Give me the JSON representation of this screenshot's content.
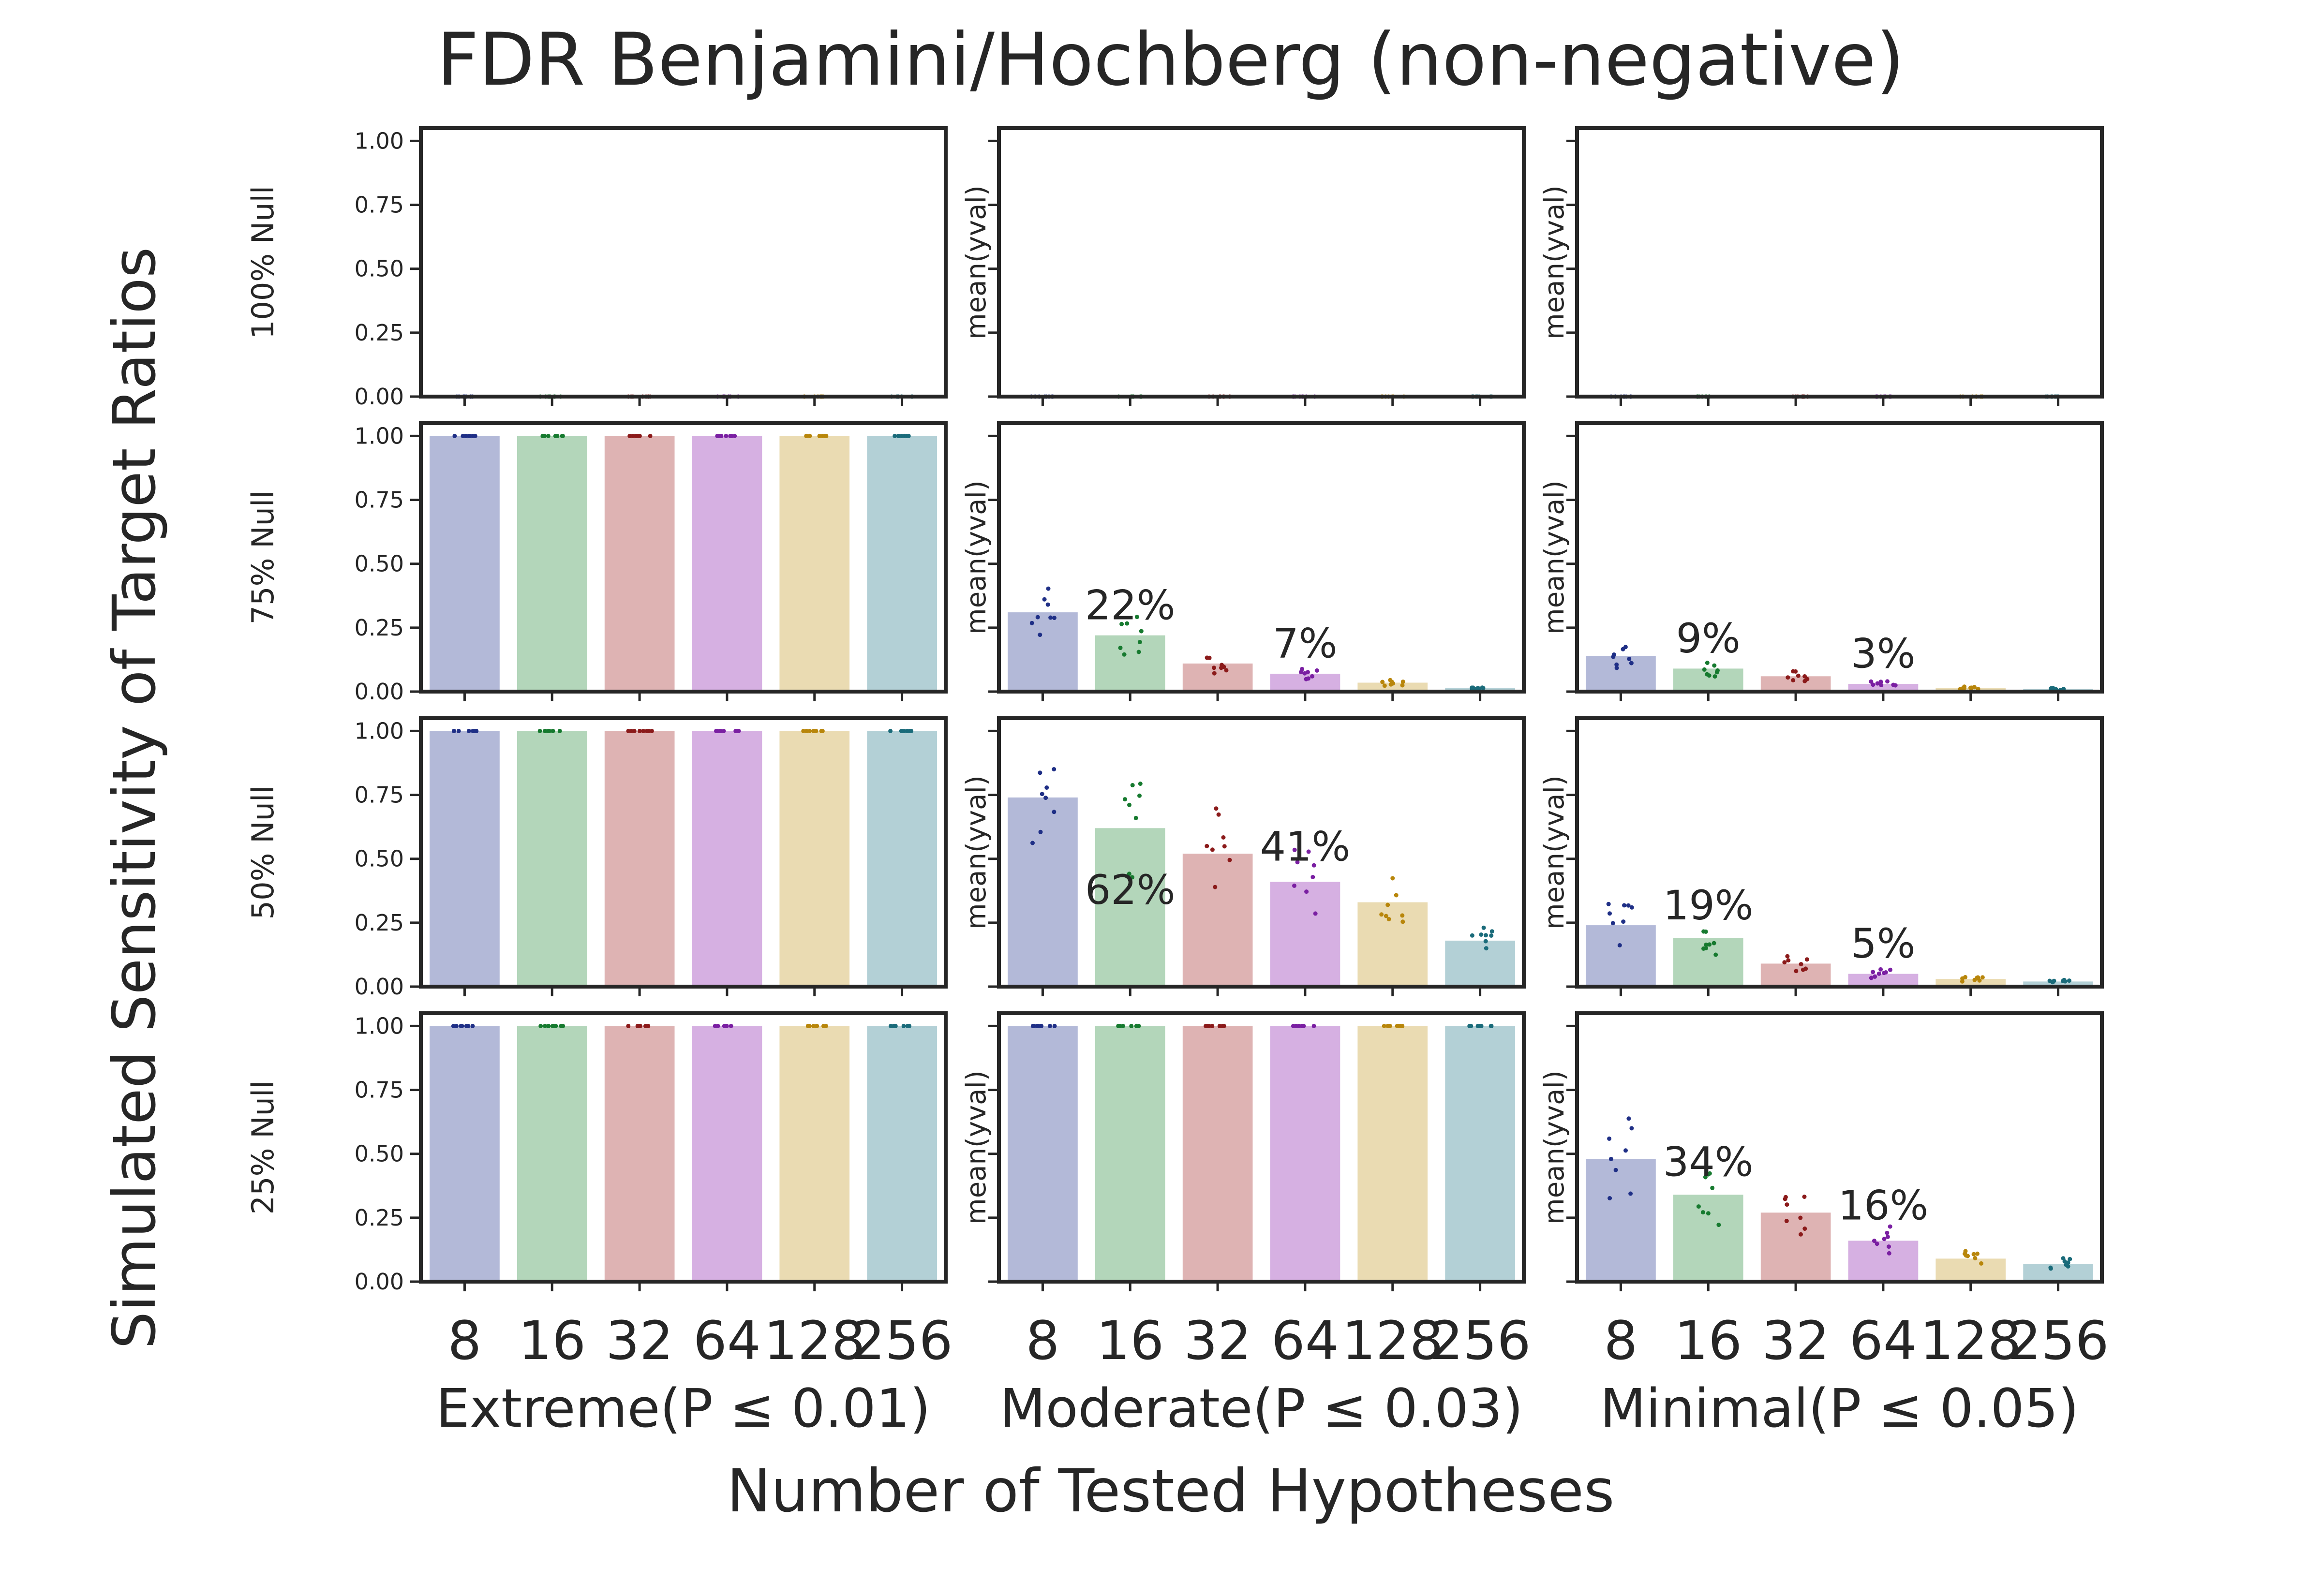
{
  "title": "FDR Benjamini/Hochberg (non-negative)",
  "xlabel": "Number of Tested Hypotheses",
  "ylabel": "Simulated Sensitivity of Target Ratios",
  "inner_ylabel": "mean(yval)",
  "columns": [
    "Extreme(P ≤ 0.01)",
    "Moderate(P ≤ 0.03)",
    "Minimal(P ≤ 0.05)"
  ],
  "rows": [
    "100% Null",
    "75% Null",
    "50% Null",
    "25% Null"
  ],
  "chart_data": {
    "type": "bar",
    "layout": "facet-grid 4 rows x 3 columns, bars with jittered strip points",
    "categories": [
      "8",
      "16",
      "32",
      "64",
      "128",
      "256"
    ],
    "ylim": [
      0,
      1.05
    ],
    "yticks": [
      "0.00",
      "0.25",
      "0.50",
      "0.75",
      "1.00"
    ],
    "bar_colors": [
      "#b3b9d8",
      "#b3d6ba",
      "#deb3b3",
      "#d6b0e2",
      "#eadbb2",
      "#b3d0d6"
    ],
    "point_colors": [
      "#1f2f86",
      "#167a2f",
      "#8b1a1a",
      "#7a1fa2",
      "#b8860b",
      "#1a6b7a"
    ],
    "panels": [
      {
        "row": "100% Null",
        "column": "Extreme(P ≤ 0.01)",
        "values": [
          0,
          0,
          0,
          0,
          0,
          0
        ],
        "annotations": []
      },
      {
        "row": "100% Null",
        "column": "Moderate(P ≤ 0.03)",
        "values": [
          0,
          0,
          0,
          0,
          0,
          0
        ],
        "annotations": []
      },
      {
        "row": "100% Null",
        "column": "Minimal(P ≤ 0.05)",
        "values": [
          0,
          0,
          0,
          0,
          0,
          0
        ],
        "annotations": []
      },
      {
        "row": "75% Null",
        "column": "Extreme(P ≤ 0.01)",
        "values": [
          1,
          1,
          1,
          1,
          1,
          1
        ],
        "annotations": []
      },
      {
        "row": "75% Null",
        "column": "Moderate(P ≤ 0.03)",
        "values": [
          0.31,
          0.22,
          0.11,
          0.07,
          0.035,
          0.015
        ],
        "annotations": [
          {
            "text": "22%",
            "x": "16",
            "y": 0.34
          },
          {
            "text": "7%",
            "x": "64",
            "y": 0.19
          }
        ]
      },
      {
        "row": "75% Null",
        "column": "Minimal(P ≤ 0.05)",
        "values": [
          0.14,
          0.09,
          0.06,
          0.03,
          0.015,
          0.01
        ],
        "annotations": [
          {
            "text": "9%",
            "x": "16",
            "y": 0.21
          },
          {
            "text": "3%",
            "x": "64",
            "y": 0.15
          }
        ]
      },
      {
        "row": "50% Null",
        "column": "Extreme(P ≤ 0.01)",
        "values": [
          1,
          1,
          1,
          1,
          1,
          1
        ],
        "annotations": []
      },
      {
        "row": "50% Null",
        "column": "Moderate(P ≤ 0.03)",
        "values": [
          0.74,
          0.62,
          0.52,
          0.41,
          0.33,
          0.18
        ],
        "annotations": [
          {
            "text": "62%",
            "x": "16",
            "y": 0.38
          },
          {
            "text": "41%",
            "x": "64",
            "y": 0.55
          }
        ]
      },
      {
        "row": "50% Null",
        "column": "Minimal(P ≤ 0.05)",
        "values": [
          0.24,
          0.19,
          0.09,
          0.05,
          0.03,
          0.02
        ],
        "annotations": [
          {
            "text": "19%",
            "x": "16",
            "y": 0.32
          },
          {
            "text": "5%",
            "x": "64",
            "y": 0.17
          }
        ]
      },
      {
        "row": "25% Null",
        "column": "Extreme(P ≤ 0.01)",
        "values": [
          1,
          1,
          1,
          1,
          1,
          1
        ],
        "annotations": []
      },
      {
        "row": "25% Null",
        "column": "Moderate(P ≤ 0.03)",
        "values": [
          1,
          1,
          1,
          1,
          1,
          1
        ],
        "annotations": []
      },
      {
        "row": "25% Null",
        "column": "Minimal(P ≤ 0.05)",
        "values": [
          0.48,
          0.34,
          0.27,
          0.16,
          0.09,
          0.07
        ],
        "annotations": [
          {
            "text": "34%",
            "x": "16",
            "y": 0.47
          },
          {
            "text": "16%",
            "x": "64",
            "y": 0.3
          }
        ]
      }
    ]
  }
}
